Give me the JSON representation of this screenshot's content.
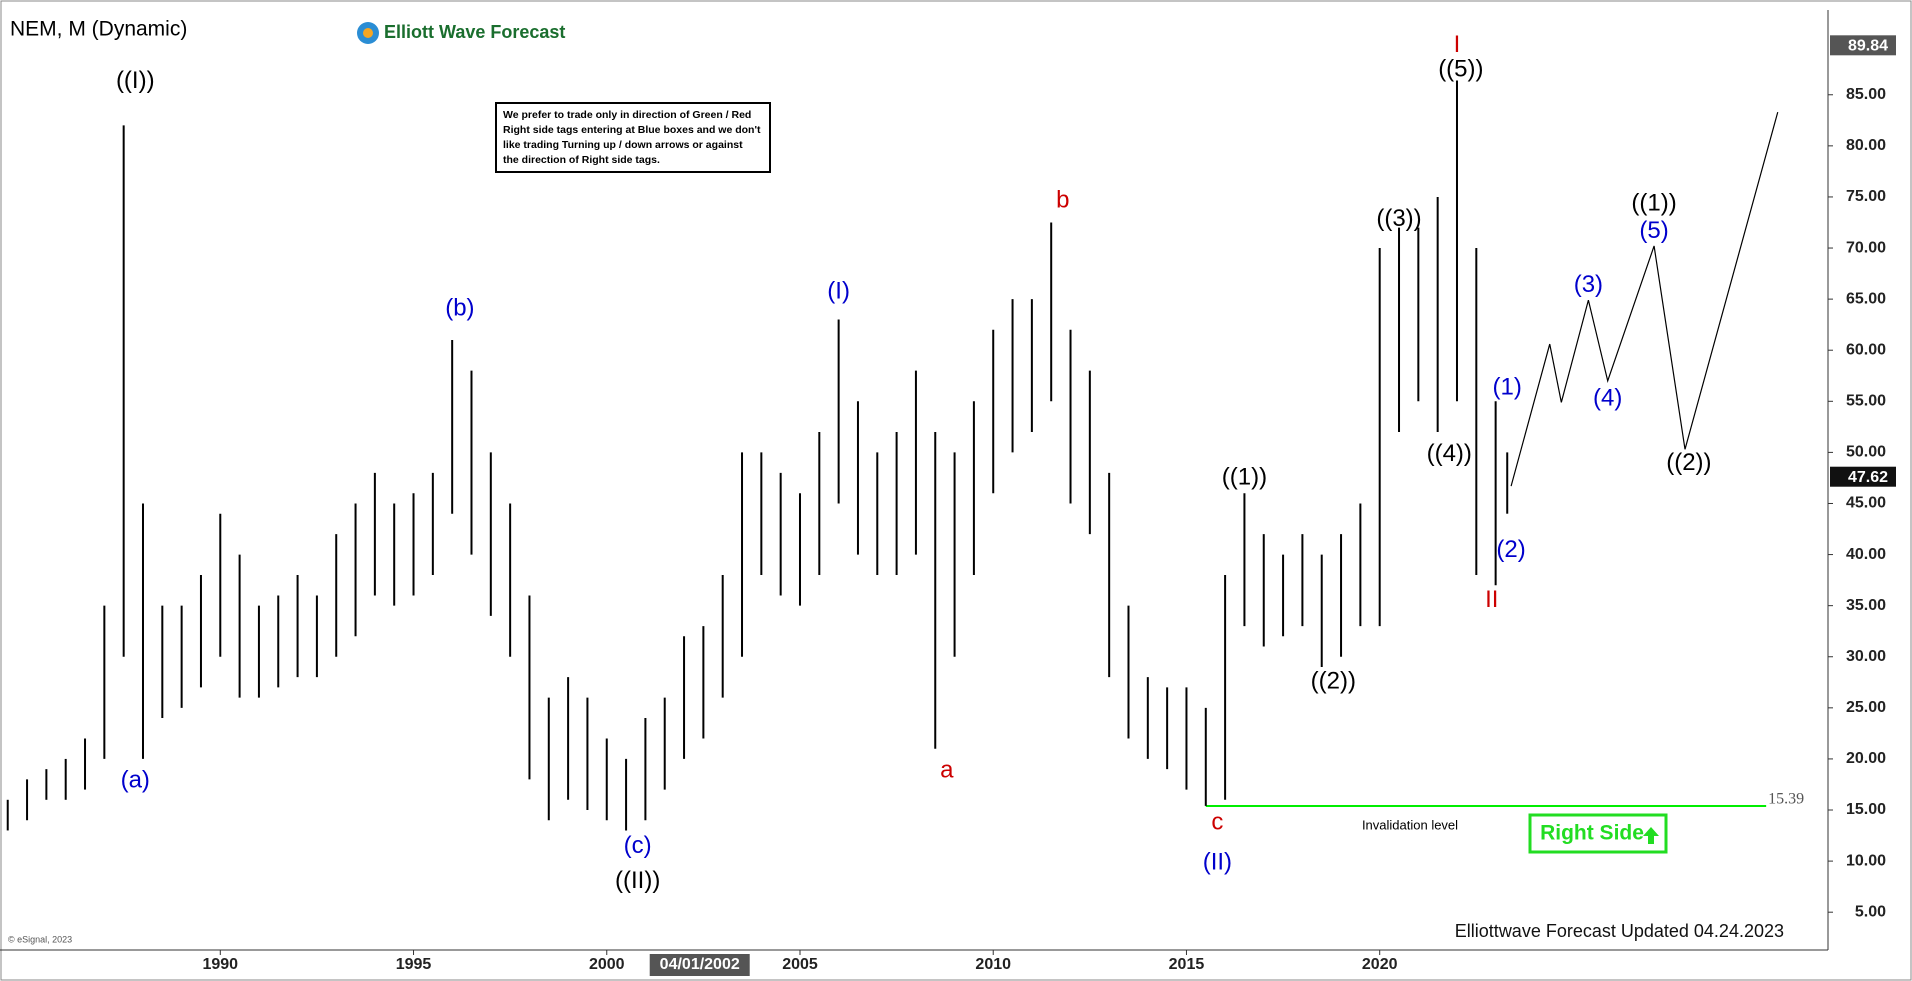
{
  "chart_data": {
    "type": "range_bar",
    "title": "NEM, M (Dynamic)",
    "brand": "Elliott Wave Forecast",
    "note": [
      "We prefer to trade only in direction of Green / Red",
      "Right side tags entering at Blue boxes and we don't",
      "like trading Turning up / down arrows or against",
      "the direction of Right side tags."
    ],
    "badge": "Right Side",
    "footer": "Elliottwave Forecast Updated 04.24.2023",
    "copyright": "© eSignal, 2023",
    "color": "#000000",
    "xlim": [
      1984.3,
      2031.6
    ],
    "ylim": [
      1.3,
      93.1
    ],
    "xticks": [
      1990,
      1995,
      2000,
      2005,
      2010,
      2015,
      2020
    ],
    "yticks": [
      {
        "value": 5,
        "label": "5.00"
      },
      {
        "value": 10,
        "label": "10.00"
      },
      {
        "value": 15,
        "label": "15.00"
      },
      {
        "value": 20,
        "label": "20.00"
      },
      {
        "value": 25,
        "label": "25.00"
      },
      {
        "value": 30,
        "label": "30.00"
      },
      {
        "value": 35,
        "label": "35.00"
      },
      {
        "value": 40,
        "label": "40.00"
      },
      {
        "value": 45,
        "label": "45.00"
      },
      {
        "value": 50,
        "label": "50.00"
      },
      {
        "value": 55,
        "label": "55.00"
      },
      {
        "value": 60,
        "label": "60.00"
      },
      {
        "value": 65,
        "label": "65.00"
      },
      {
        "value": 70,
        "label": "70.00"
      },
      {
        "value": 75,
        "label": "75.00"
      },
      {
        "value": 80,
        "label": "80.00"
      },
      {
        "value": 85,
        "label": "85.00"
      }
    ],
    "cursor_label": {
      "value": 2002.25,
      "label": "04/01/2002"
    },
    "price_tags": [
      89.84,
      47.62
    ],
    "bars": [
      {
        "x": 1984.5,
        "high": 16,
        "low": 13
      },
      {
        "x": 1985,
        "high": 18,
        "low": 14
      },
      {
        "x": 1985.5,
        "high": 19,
        "low": 16
      },
      {
        "x": 1986,
        "high": 20,
        "low": 16
      },
      {
        "x": 1986.5,
        "high": 22,
        "low": 17
      },
      {
        "x": 1987,
        "high": 35,
        "low": 20
      },
      {
        "x": 1987.5,
        "high": 82,
        "low": 30
      },
      {
        "x": 1988,
        "high": 45,
        "low": 20
      },
      {
        "x": 1988.5,
        "high": 35,
        "low": 24
      },
      {
        "x": 1989,
        "high": 35,
        "low": 25
      },
      {
        "x": 1989.5,
        "high": 38,
        "low": 27
      },
      {
        "x": 1990,
        "high": 44,
        "low": 30
      },
      {
        "x": 1990.5,
        "high": 40,
        "low": 26
      },
      {
        "x": 1991,
        "high": 35,
        "low": 26
      },
      {
        "x": 1991.5,
        "high": 36,
        "low": 27
      },
      {
        "x": 1992,
        "high": 38,
        "low": 28
      },
      {
        "x": 1992.5,
        "high": 36,
        "low": 28
      },
      {
        "x": 1993,
        "high": 42,
        "low": 30
      },
      {
        "x": 1993.5,
        "high": 45,
        "low": 32
      },
      {
        "x": 1994,
        "high": 48,
        "low": 36
      },
      {
        "x": 1994.5,
        "high": 45,
        "low": 35
      },
      {
        "x": 1995,
        "high": 46,
        "low": 36
      },
      {
        "x": 1995.5,
        "high": 48,
        "low": 38
      },
      {
        "x": 1996,
        "high": 61,
        "low": 44
      },
      {
        "x": 1996.5,
        "high": 58,
        "low": 40
      },
      {
        "x": 1997,
        "high": 50,
        "low": 34
      },
      {
        "x": 1997.5,
        "high": 45,
        "low": 30
      },
      {
        "x": 1998,
        "high": 36,
        "low": 18
      },
      {
        "x": 1998.5,
        "high": 26,
        "low": 14
      },
      {
        "x": 1999,
        "high": 28,
        "low": 16
      },
      {
        "x": 1999.5,
        "high": 26,
        "low": 15
      },
      {
        "x": 2000,
        "high": 22,
        "low": 14
      },
      {
        "x": 2000.5,
        "high": 20,
        "low": 13
      },
      {
        "x": 2001,
        "high": 24,
        "low": 14
      },
      {
        "x": 2001.5,
        "high": 26,
        "low": 17
      },
      {
        "x": 2002,
        "high": 32,
        "low": 20
      },
      {
        "x": 2002.5,
        "high": 33,
        "low": 22
      },
      {
        "x": 2003,
        "high": 38,
        "low": 26
      },
      {
        "x": 2003.5,
        "high": 50,
        "low": 30
      },
      {
        "x": 2004,
        "high": 50,
        "low": 38
      },
      {
        "x": 2004.5,
        "high": 48,
        "low": 36
      },
      {
        "x": 2005,
        "high": 46,
        "low": 35
      },
      {
        "x": 2005.5,
        "high": 52,
        "low": 38
      },
      {
        "x": 2006,
        "high": 63,
        "low": 45
      },
      {
        "x": 2006.5,
        "high": 55,
        "low": 40
      },
      {
        "x": 2007,
        "high": 50,
        "low": 38
      },
      {
        "x": 2007.5,
        "high": 52,
        "low": 38
      },
      {
        "x": 2008,
        "high": 58,
        "low": 40
      },
      {
        "x": 2008.5,
        "high": 52,
        "low": 21
      },
      {
        "x": 2009,
        "high": 50,
        "low": 30
      },
      {
        "x": 2009.5,
        "high": 55,
        "low": 38
      },
      {
        "x": 2010,
        "high": 62,
        "low": 46
      },
      {
        "x": 2010.5,
        "high": 65,
        "low": 50
      },
      {
        "x": 2011,
        "high": 65,
        "low": 52
      },
      {
        "x": 2011.5,
        "high": 72.5,
        "low": 55
      },
      {
        "x": 2012,
        "high": 62,
        "low": 45
      },
      {
        "x": 2012.5,
        "high": 58,
        "low": 42
      },
      {
        "x": 2013,
        "high": 48,
        "low": 28
      },
      {
        "x": 2013.5,
        "high": 35,
        "low": 22
      },
      {
        "x": 2014,
        "high": 28,
        "low": 20
      },
      {
        "x": 2014.5,
        "high": 27,
        "low": 19
      },
      {
        "x": 2015,
        "high": 27,
        "low": 17
      },
      {
        "x": 2015.5,
        "high": 25,
        "low": 15.4
      },
      {
        "x": 2016,
        "high": 38,
        "low": 16
      },
      {
        "x": 2016.5,
        "high": 46,
        "low": 33
      },
      {
        "x": 2017,
        "high": 42,
        "low": 31
      },
      {
        "x": 2017.5,
        "high": 40,
        "low": 32
      },
      {
        "x": 2018,
        "high": 42,
        "low": 33
      },
      {
        "x": 2018.5,
        "high": 40,
        "low": 29
      },
      {
        "x": 2019,
        "high": 42,
        "low": 30
      },
      {
        "x": 2019.5,
        "high": 45,
        "low": 33
      },
      {
        "x": 2020,
        "high": 70,
        "low": 33
      },
      {
        "x": 2020.5,
        "high": 72,
        "low": 52
      },
      {
        "x": 2021,
        "high": 72,
        "low": 55
      },
      {
        "x": 2021.5,
        "high": 75,
        "low": 52
      },
      {
        "x": 2022,
        "high": 86.4,
        "low": 55
      },
      {
        "x": 2022.5,
        "high": 70,
        "low": 38
      },
      {
        "x": 2023,
        "high": 55,
        "low": 37
      },
      {
        "x": 2023.3,
        "high": 50,
        "low": 44
      }
    ],
    "projection": {
      "x": [
        2023.4,
        2024.4,
        2024.7,
        2025.4,
        2025.9,
        2027.1,
        2027.9,
        2030.3
      ],
      "y": [
        46.7,
        60.6,
        54.9,
        64.9,
        57.0,
        70.2,
        50.3,
        83.3
      ],
      "color": "#000000"
    },
    "invalidation": {
      "value": 15.39,
      "label": "Invalidation level",
      "x": [
        2015.5,
        2030.0
      ],
      "color": "#00ee00"
    },
    "annotations": [
      {
        "text": "((I))",
        "x": 1987.8,
        "y": 86.3,
        "color": "#000000"
      },
      {
        "text": "(a)",
        "x": 1987.8,
        "y": 17.8,
        "color": "#0000cc"
      },
      {
        "text": "(b)",
        "x": 1996.2,
        "y": 64,
        "color": "#0000cc"
      },
      {
        "text": "(c)",
        "x": 2000.8,
        "y": 11.4,
        "color": "#0000cc"
      },
      {
        "text": "((II))",
        "x": 2000.8,
        "y": 8,
        "color": "#000000"
      },
      {
        "text": "(I)",
        "x": 2006,
        "y": 65.7,
        "color": "#0000cc"
      },
      {
        "text": "a",
        "x": 2008.8,
        "y": 18.8,
        "color": "#cc0000"
      },
      {
        "text": "b",
        "x": 2011.8,
        "y": 74.6,
        "color": "#cc0000"
      },
      {
        "text": "((1))",
        "x": 2016.5,
        "y": 47.5,
        "color": "#000000"
      },
      {
        "text": "((2))",
        "x": 2018.8,
        "y": 27.5,
        "color": "#000000"
      },
      {
        "text": "c",
        "x": 2015.8,
        "y": 13.7,
        "color": "#cc0000"
      },
      {
        "text": "(II)",
        "x": 2015.8,
        "y": 9.8,
        "color": "#0000cc"
      },
      {
        "text": "((3))",
        "x": 2020.5,
        "y": 72.8,
        "color": "#000000"
      },
      {
        "text": "((4))",
        "x": 2021.8,
        "y": 49.8,
        "color": "#000000"
      },
      {
        "text": "I",
        "x": 2022,
        "y": 89.8,
        "color": "#cc0000"
      },
      {
        "text": "((5))",
        "x": 2022.1,
        "y": 87.4,
        "color": "#000000"
      },
      {
        "text": "(1)",
        "x": 2023.3,
        "y": 56.3,
        "color": "#0000cc"
      },
      {
        "text": "(2)",
        "x": 2023.4,
        "y": 40.4,
        "color": "#0000cc"
      },
      {
        "text": "II",
        "x": 2022.9,
        "y": 35.5,
        "color": "#cc0000"
      },
      {
        "text": "(3)",
        "x": 2025.4,
        "y": 66.3,
        "color": "#0000cc"
      },
      {
        "text": "(4)",
        "x": 2025.9,
        "y": 55.2,
        "color": "#0000cc"
      },
      {
        "text": "(5)",
        "x": 2027.1,
        "y": 71.6,
        "color": "#0000cc"
      },
      {
        "text": "((1))",
        "x": 2027.1,
        "y": 74.3,
        "color": "#000000"
      },
      {
        "text": "((2))",
        "x": 2028,
        "y": 48.9,
        "color": "#000000"
      }
    ]
  }
}
